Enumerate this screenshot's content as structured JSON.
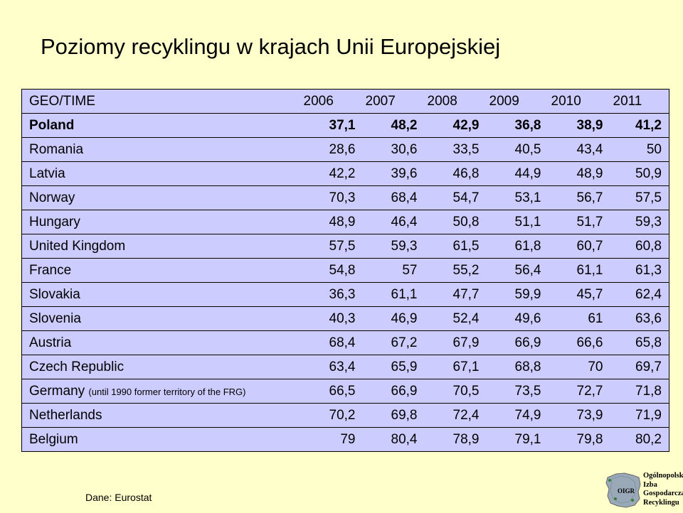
{
  "title": "Poziomy recyklingu w krajach Unii Europejskiej",
  "table": {
    "header": {
      "label": "GEO/TIME",
      "years": [
        "2006",
        "2007",
        "2008",
        "2009",
        "2010",
        "2011"
      ]
    },
    "rows": [
      {
        "name": "Poland",
        "values": [
          "37,1",
          "48,2",
          "42,9",
          "36,8",
          "38,9",
          "41,2"
        ],
        "bold": true
      },
      {
        "name": "Romania",
        "values": [
          "28,6",
          "30,6",
          "33,5",
          "40,5",
          "43,4",
          "50"
        ]
      },
      {
        "name": "Latvia",
        "values": [
          "42,2",
          "39,6",
          "46,8",
          "44,9",
          "48,9",
          "50,9"
        ]
      },
      {
        "name": "Norway",
        "values": [
          "70,3",
          "68,4",
          "54,7",
          "53,1",
          "56,7",
          "57,5"
        ]
      },
      {
        "name": "Hungary",
        "values": [
          "48,9",
          "46,4",
          "50,8",
          "51,1",
          "51,7",
          "59,3"
        ]
      },
      {
        "name": "United Kingdom",
        "values": [
          "57,5",
          "59,3",
          "61,5",
          "61,8",
          "60,7",
          "60,8"
        ]
      },
      {
        "name": "France",
        "values": [
          "54,8",
          "57",
          "55,2",
          "56,4",
          "61,1",
          "61,3"
        ]
      },
      {
        "name": "Slovakia",
        "values": [
          "36,3",
          "61,1",
          "47,7",
          "59,9",
          "45,7",
          "62,4"
        ]
      },
      {
        "name": "Slovenia",
        "values": [
          "40,3",
          "46,9",
          "52,4",
          "49,6",
          "61",
          "63,6"
        ]
      },
      {
        "name": "Austria",
        "values": [
          "68,4",
          "67,2",
          "67,9",
          "66,9",
          "66,6",
          "65,8"
        ]
      },
      {
        "name": "Czech Republic",
        "values": [
          "63,4",
          "65,9",
          "67,1",
          "68,8",
          "70",
          "69,7"
        ]
      },
      {
        "name": "Germany",
        "note": "(until 1990 former territory of the FRG)",
        "values": [
          "66,5",
          "66,9",
          "70,5",
          "73,5",
          "72,7",
          "71,8"
        ]
      },
      {
        "name": "Netherlands",
        "values": [
          "70,2",
          "69,8",
          "72,4",
          "74,9",
          "73,9",
          "71,9"
        ]
      },
      {
        "name": "Belgium",
        "values": [
          "79",
          "80,4",
          "78,9",
          "79,1",
          "79,8",
          "80,2"
        ]
      }
    ]
  },
  "source": "Dane: Eurostat",
  "logo": {
    "mark": "OIGR",
    "lines": [
      "Ogólnopolska",
      "Izba",
      "Gospodarcza",
      "Recyklingu"
    ],
    "map_color": "#9aa9b8"
  }
}
